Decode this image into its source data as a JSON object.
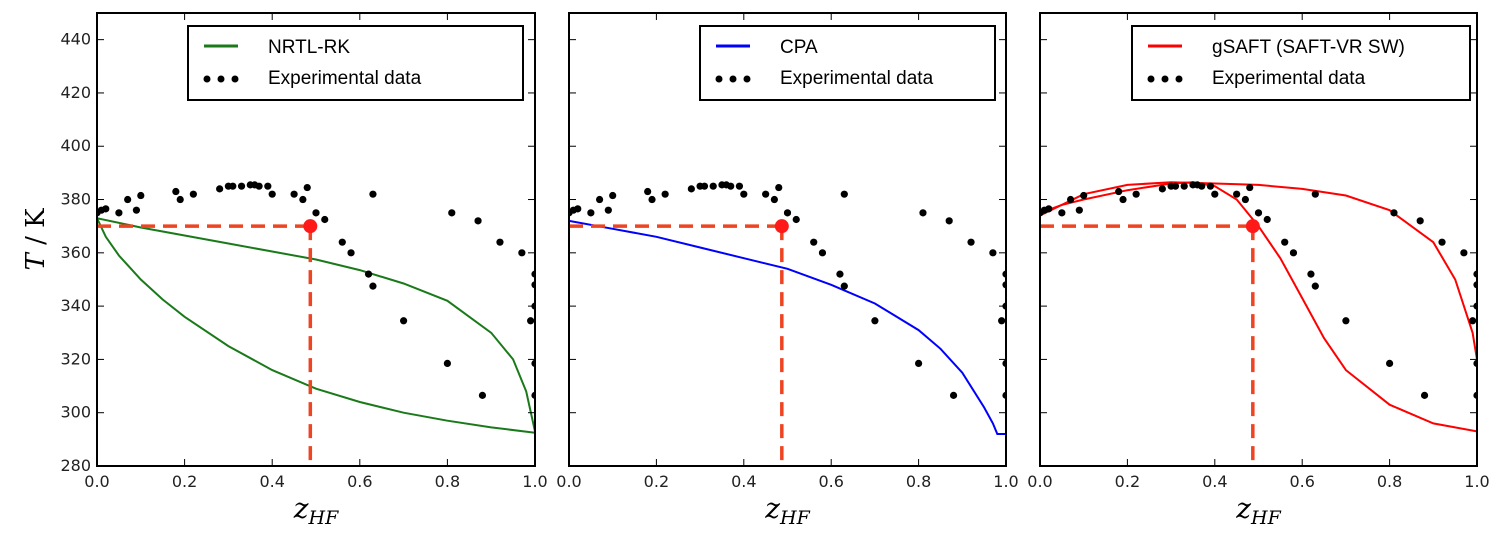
{
  "chart_data": {
    "type": "line",
    "ylabel": "T / K",
    "y_ticks": [
      "280",
      "300",
      "320",
      "340",
      "360",
      "380",
      "400",
      "420",
      "440"
    ],
    "ylim": [
      280,
      450
    ],
    "xlim": [
      0.0,
      1.0
    ],
    "reference_point": {
      "x": 0.487,
      "y": 370
    },
    "panels": [
      {
        "xlabel": "z_HF",
        "x_ticks": [
          "0.0",
          "0.2",
          "0.4",
          "0.6",
          "0.8",
          "1.0"
        ],
        "legend": {
          "placement": "top-right",
          "line_label": "NRTL-RK",
          "points_label": "Experimental data"
        },
        "model_color": "#1a7a1a",
        "series": [
          {
            "name": "NRTL-RK",
            "x": [
              0.0,
              0.1,
              0.2,
              0.3,
              0.4,
              0.5,
              0.6,
              0.7,
              0.8,
              0.9,
              0.95,
              0.98,
              1.0
            ],
            "y": [
              373,
              369.5,
              366.5,
              363.5,
              360.5,
              357.5,
              353.5,
              348.5,
              342,
              330,
              320,
              308,
              293
            ]
          },
          {
            "name": "NRTL-RK",
            "x": [
              0.0,
              0.02,
              0.05,
              0.1,
              0.15,
              0.2,
              0.3,
              0.4,
              0.5,
              0.6,
              0.7,
              0.8,
              0.9,
              1.0
            ],
            "y": [
              373,
              366,
              359,
              350,
              342.5,
              336,
              325,
              316,
              309,
              304,
              300,
              297,
              294.5,
              292.5
            ]
          }
        ]
      },
      {
        "xlabel": "z_HF",
        "x_ticks": [
          "0.0",
          "0.2",
          "0.4",
          "0.6",
          "0.8",
          "1.0"
        ],
        "legend": {
          "placement": "top-right",
          "line_label": "CPA",
          "points_label": "Experimental data"
        },
        "model_color": "#0000ff",
        "series": [
          {
            "name": "CPA",
            "x": [
              0.0,
              0.1,
              0.2,
              0.3,
              0.4,
              0.5,
              0.6,
              0.7,
              0.8,
              0.85,
              0.9,
              0.95,
              0.97,
              0.98,
              1.0
            ],
            "y": [
              372,
              369,
              366,
              362,
              358,
              354,
              348,
              341,
              331,
              324,
              315,
              302,
              296,
              292,
              292
            ]
          }
        ]
      },
      {
        "xlabel": "z_HF",
        "x_ticks": [
          "0.0",
          "0.2",
          "0.4",
          "0.6",
          "0.8",
          "1.0"
        ],
        "legend": {
          "placement": "top-right",
          "line_label": "gSAFT (SAFT-VR SW)",
          "points_label": "Experimental data"
        },
        "model_color": "#ff0000",
        "series": [
          {
            "name": "gSAFT (SAFT-VR SW)",
            "x": [
              0.0,
              0.05,
              0.1,
              0.2,
              0.3,
              0.35,
              0.4,
              0.45,
              0.5,
              0.55,
              0.6,
              0.65,
              0.7,
              0.8,
              0.9,
              1.0
            ],
            "y": [
              375,
              378,
              380,
              383.5,
              386,
              386.5,
              385,
              380,
              370,
              358,
              343,
              328,
              316,
              303,
              296,
              293
            ]
          },
          {
            "name": "gSAFT (SAFT-VR SW)",
            "x": [
              0.0,
              0.1,
              0.2,
              0.3,
              0.4,
              0.5,
              0.6,
              0.7,
              0.8,
              0.9,
              0.95,
              0.97,
              0.99,
              1.0
            ],
            "y": [
              374,
              382,
              385.5,
              386.5,
              386,
              385.5,
              384,
              381.5,
              376,
              364,
              350,
              340,
              330,
              320
            ]
          }
        ]
      }
    ],
    "experimental_data": {
      "name": "Experimental data",
      "x": [
        0.0,
        0.01,
        0.02,
        0.05,
        0.07,
        0.09,
        0.1,
        0.18,
        0.19,
        0.22,
        0.28,
        0.3,
        0.31,
        0.33,
        0.35,
        0.36,
        0.37,
        0.39,
        0.4,
        0.45,
        0.47,
        0.48,
        0.5,
        0.52,
        0.56,
        0.58,
        0.62,
        0.63,
        0.63,
        0.7,
        0.8,
        0.81,
        0.87,
        0.88,
        0.92,
        0.97,
        0.99,
        1.0,
        1.0,
        1.0,
        1.0,
        1.0
      ],
      "y": [
        375,
        376,
        376.5,
        375,
        380,
        376,
        381.5,
        383,
        380,
        382,
        384,
        385,
        385,
        385,
        385.5,
        385.5,
        385,
        385,
        382,
        382,
        380,
        384.5,
        375,
        372.5,
        364,
        360,
        352,
        382,
        347.5,
        334.5,
        318.5,
        375,
        372,
        306.5,
        364,
        360,
        334.5,
        352,
        348,
        318.5,
        306.5,
        340
      ]
    }
  }
}
